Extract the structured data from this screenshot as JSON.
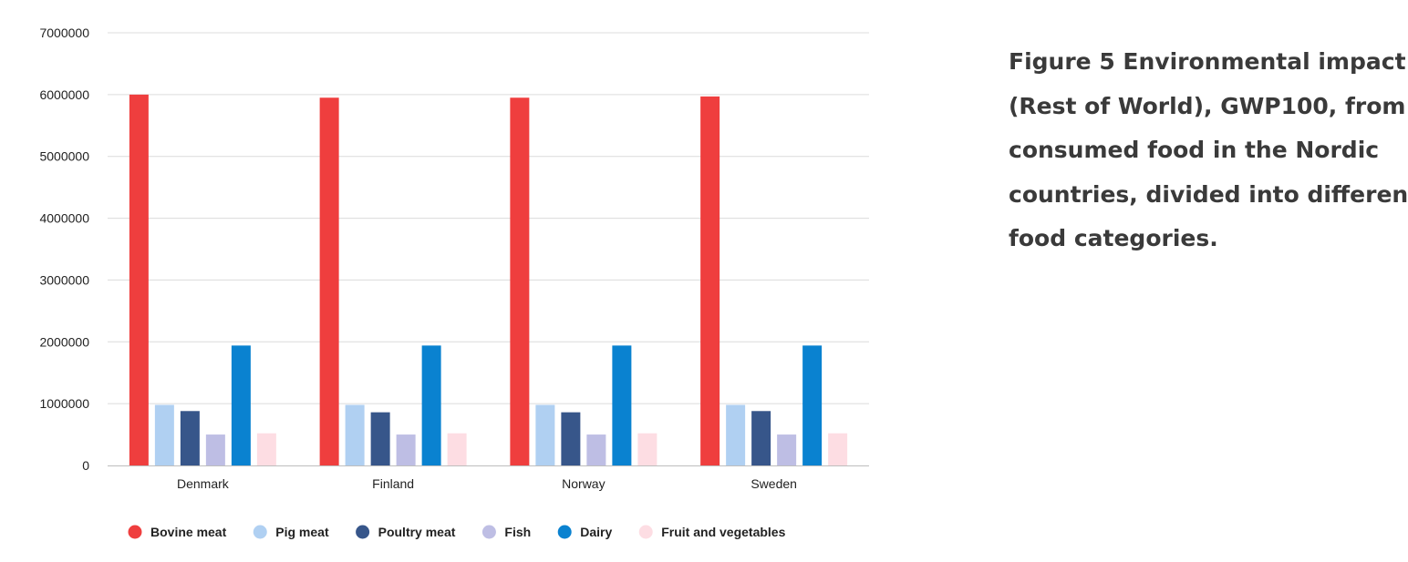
{
  "caption": {
    "lines": [
      "Figure 5 Environmental impact",
      "(Rest of World), GWP100, from",
      "consumed food in the Nordic",
      "countries, divided into different",
      "food categories."
    ]
  },
  "chart_data": {
    "type": "bar",
    "title": "",
    "xlabel": "",
    "ylabel": "",
    "categories": [
      "Denmark",
      "Finland",
      "Norway",
      "Sweden"
    ],
    "ylim": [
      0,
      7000000
    ],
    "yticks": [
      "0",
      "1000000",
      "2000000",
      "3000000",
      "4000000",
      "5000000",
      "6000000",
      "7000000"
    ],
    "grid": true,
    "legend_position": "bottom",
    "series": [
      {
        "name": "Bovine meat",
        "color": "#ef3e3e",
        "values": [
          6000000,
          5950000,
          5950000,
          5970000
        ]
      },
      {
        "name": "Pig meat",
        "color": "#b0d0f2",
        "values": [
          980000,
          980000,
          980000,
          980000
        ]
      },
      {
        "name": "Poultry meat",
        "color": "#37568a",
        "values": [
          880000,
          860000,
          860000,
          880000
        ]
      },
      {
        "name": "Fish",
        "color": "#bebee4",
        "values": [
          500000,
          500000,
          500000,
          500000
        ]
      },
      {
        "name": "Dairy",
        "color": "#0a82d0",
        "values": [
          1940000,
          1940000,
          1940000,
          1940000
        ]
      },
      {
        "name": "Fruit and vegetables",
        "color": "#fddde3",
        "values": [
          520000,
          520000,
          520000,
          520000
        ]
      }
    ]
  }
}
